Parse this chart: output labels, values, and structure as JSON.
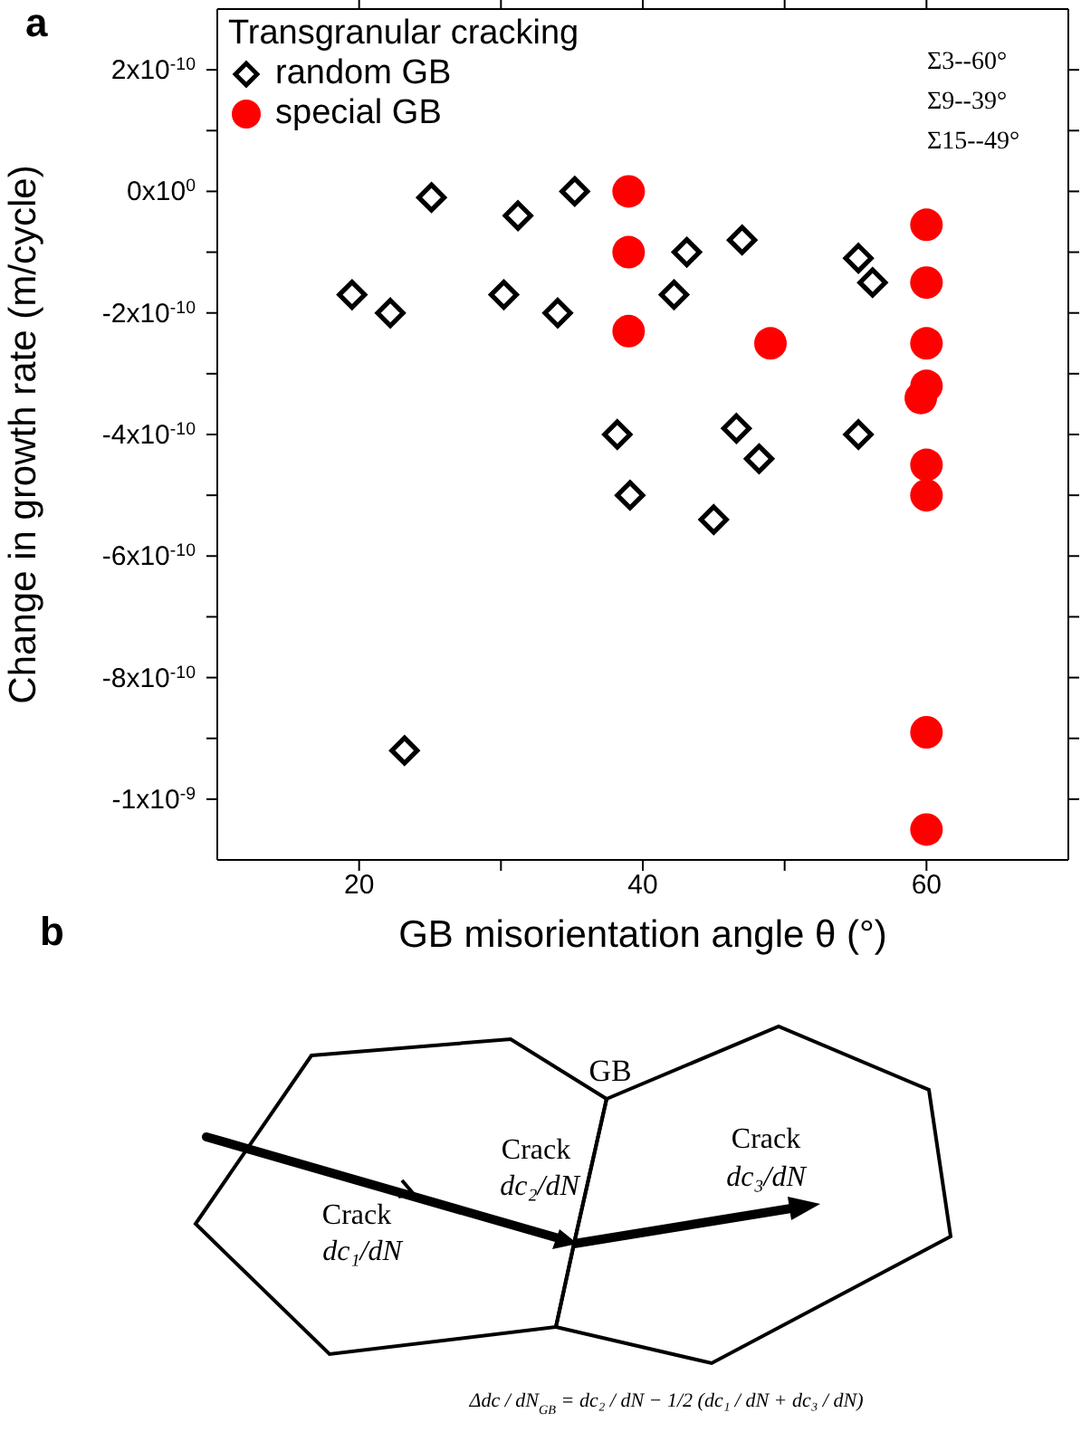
{
  "chart_data": [
    {
      "type": "scatter",
      "xlabel": "GB misorientation angle θ (°)",
      "ylabel": "Change in growth rate (m/cycle)",
      "legend_title": "Transgranular cracking",
      "legend": "top left",
      "annotations": [
        "a",
        "Σ3--60°",
        "Σ9--39°",
        "Σ15--49°"
      ],
      "xlim": [
        10,
        70
      ],
      "xticks": [
        20,
        {
          "value": 30,
          "label": null
        },
        40,
        {
          "value": 50,
          "label": null
        },
        60
      ],
      "ylim": [
        -1.1e-09,
        3e-10
      ],
      "yticks": [
        {
          "value": 2e-10,
          "label": "2x10$^{-10}$"
        },
        {
          "value": 1e-10,
          "label": null
        },
        {
          "value": 0,
          "label": "0x10$^{0}$"
        },
        {
          "value": -1e-10,
          "label": null
        },
        {
          "value": -2e-10,
          "label": "-2x10$^{-10}$"
        },
        {
          "value": -3e-10,
          "label": null
        },
        {
          "value": -4e-10,
          "label": "-4x10$^{-10}$"
        },
        {
          "value": -5e-10,
          "label": null
        },
        {
          "value": -6e-10,
          "label": "-6x10$^{-10}$"
        },
        {
          "value": -7e-10,
          "label": null
        },
        {
          "value": -8e-10,
          "label": "-8x10$^{-10}$"
        },
        {
          "value": -9e-10,
          "label": null
        },
        {
          "value": -1e-09,
          "label": "-1x10$^{-9}$"
        }
      ],
      "series": [
        {
          "name": "random GB",
          "color": "#000000",
          "marker": "diamond",
          "x": [
            19.5,
            22.2,
            25.1,
            30.2,
            31.2,
            34.0,
            35.2,
            38.2,
            39.1,
            43.1,
            42.2,
            46.6,
            47.0,
            48.2,
            45.0,
            55.2,
            56.2,
            55.2,
            23.2
          ],
          "values": [
            -1.7e-10,
            -2e-10,
            -1e-11,
            -1.7e-10,
            -4e-11,
            -2e-10,
            0,
            -4e-10,
            -5e-10,
            -1e-10,
            -1.7e-10,
            -3.9e-10,
            -8e-11,
            -4.4e-10,
            -5.4e-10,
            -1.1e-10,
            -1.5e-10,
            -4e-10,
            -9.2e-10
          ]
        },
        {
          "name": "special GB",
          "color": "#ff0000",
          "marker": "circle",
          "x": [
            39,
            39,
            39,
            49,
            60,
            60,
            60,
            60,
            59.6,
            60,
            60,
            60,
            60
          ],
          "values": [
            0,
            -1e-10,
            -2.3e-10,
            -2.5e-10,
            -5.5e-11,
            -1.5e-10,
            -2.5e-10,
            -3.2e-10,
            -3.4e-10,
            -4.5e-10,
            -5e-10,
            -8.9e-10,
            -1.05e-09
          ]
        }
      ]
    },
    {
      "type": "other",
      "annotations": [
        "b",
        "GB",
        "Crack",
        "dc₁/dN",
        "Crack",
        "dc₂/dN",
        "Crack",
        "dc₃/dN",
        "Δdc / dN$_{GB}$ = dc₂ / dN − 1/2 (dc₁ / dN + dc₃ / dN)"
      ]
    }
  ]
}
